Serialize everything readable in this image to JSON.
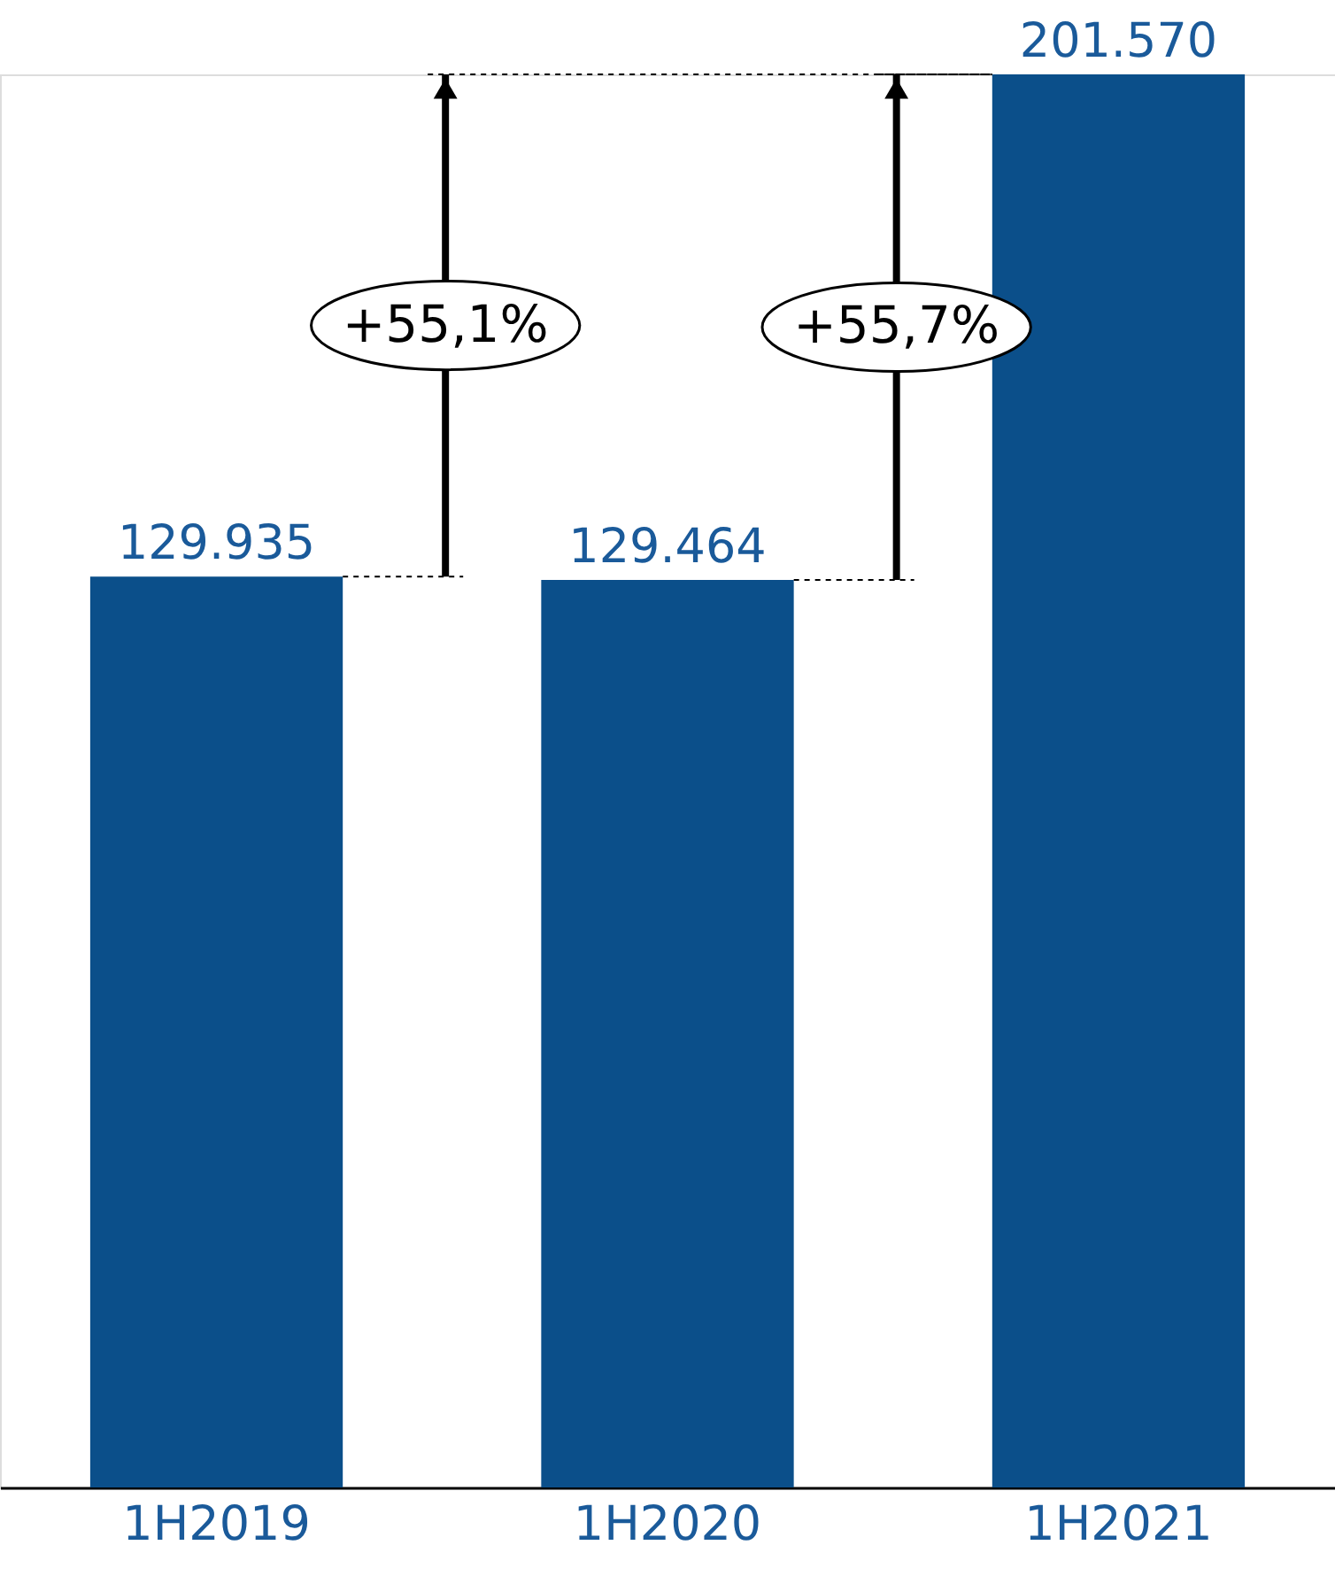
{
  "chart_data": {
    "type": "bar",
    "categories": [
      "1H2019",
      "1H2020",
      "1H2021"
    ],
    "values": [
      129935,
      129464,
      201570
    ],
    "value_labels": [
      "129.935",
      "129.464",
      "201.570"
    ],
    "color": "#0b4f8a",
    "annotations": [
      "+55,1%",
      "+55,7%"
    ],
    "grid": false
  }
}
